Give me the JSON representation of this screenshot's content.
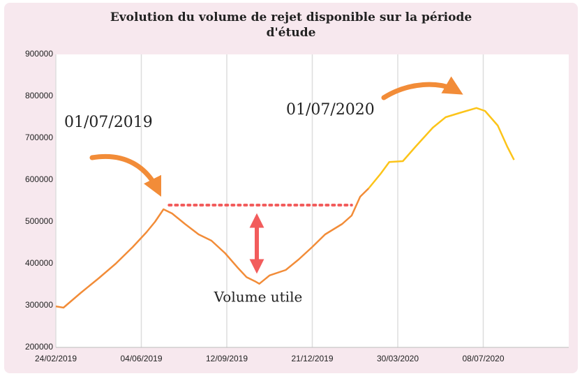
{
  "chart_data": {
    "type": "line",
    "title": "Evolution du volume de rejet disponible sur la période d'étude",
    "series": [
      {
        "name": null,
        "color": "#f28c38",
        "x": [
          "24/02/2019",
          "05/03/2019",
          "25/03/2019",
          "15/04/2019",
          "05/05/2019",
          "25/05/2019",
          "10/06/2019",
          "20/06/2019",
          "30/06/2019",
          "10/07/2019",
          "25/07/2019",
          "10/08/2019",
          "25/08/2019",
          "10/09/2019",
          "25/09/2019",
          "05/10/2019",
          "15/10/2019",
          "20/10/2019",
          "01/11/2019",
          "20/11/2019",
          "05/12/2019",
          "21/12/2019",
          "05/01/2020",
          "25/01/2020",
          "05/02/2020",
          "15/02/2020",
          "25/02/2020"
        ],
        "values": [
          298000,
          295000,
          330000,
          365000,
          400000,
          440000,
          475000,
          500000,
          530000,
          520000,
          495000,
          470000,
          455000,
          425000,
          390000,
          368000,
          358000,
          352000,
          372000,
          385000,
          410000,
          440000,
          470000,
          495000,
          515000,
          560000,
          580000
        ]
      },
      {
        "name": null,
        "color": "#fcc419",
        "x": [
          "25/02/2020",
          "10/03/2020",
          "20/03/2020",
          "05/04/2020",
          "20/04/2020",
          "10/05/2020",
          "25/05/2020",
          "10/06/2020",
          "30/06/2020",
          "10/07/2020",
          "25/07/2020",
          "05/08/2020",
          "13/08/2020"
        ],
        "values": [
          580000,
          615000,
          643000,
          645000,
          680000,
          725000,
          750000,
          760000,
          772000,
          765000,
          730000,
          680000,
          648000
        ]
      }
    ],
    "xlim": [
      "24/02/2019",
      "16/10/2020"
    ],
    "xticks": [
      "24/02/2019",
      "04/06/2019",
      "12/09/2019",
      "21/12/2019",
      "30/03/2020",
      "08/07/2020"
    ],
    "ylim": [
      200000,
      900000
    ],
    "yticks": [
      200000,
      300000,
      400000,
      500000,
      600000,
      700000,
      800000,
      900000
    ],
    "grid": "x",
    "reference_line": {
      "value": 540000,
      "x": [
        "30/06/2019",
        "05/02/2020"
      ],
      "color": "#f25c5c"
    },
    "annotations": [
      "01/07/2019",
      "01/07/2020",
      "Volume utile"
    ]
  }
}
